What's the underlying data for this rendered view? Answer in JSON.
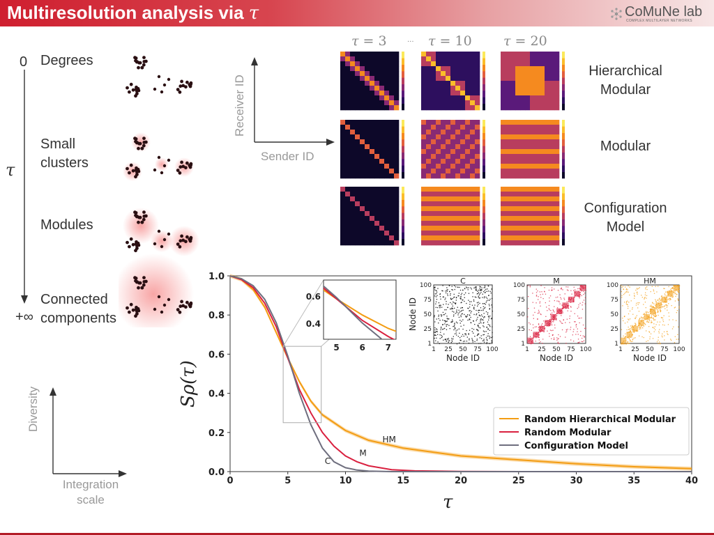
{
  "header": {
    "title": "Multiresolution analysis via",
    "tau": "τ"
  },
  "logo": {
    "name": "CoMuNe lab",
    "subtitle": "COMPLEX MULTILAYER NETWORKS"
  },
  "left_axis": {
    "zero": "0",
    "tau": "τ",
    "infinity": "+∞"
  },
  "stages": [
    {
      "lines": [
        "Degrees"
      ]
    },
    {
      "lines": [
        "Small",
        "clusters"
      ]
    },
    {
      "lines": [
        "Modules"
      ]
    },
    {
      "lines": [
        "Connected",
        "components"
      ]
    }
  ],
  "diversity_axes": {
    "y_label": "Diversity",
    "x_label_1": "Integration",
    "x_label_2": "scale"
  },
  "matrix_axes": {
    "y_label": "Receiver ID",
    "x_label": "Sender ID"
  },
  "tau_captions": [
    {
      "var": "τ",
      "rest": " = 3"
    },
    {
      "var": "τ",
      "rest": " = 10"
    },
    {
      "var": "τ",
      "rest": " = 20"
    }
  ],
  "dots_between": "...",
  "row_labels": [
    [
      "Hierarchical",
      "Modular"
    ],
    [
      "Modular"
    ],
    [
      "Configuration",
      "Model"
    ]
  ],
  "colors": {
    "hm": "#f39c12",
    "m": "#d9203f",
    "cm": "#6e6e7e"
  },
  "chart_data": {
    "type": "line",
    "ylabel": "Sρ(τ)",
    "xlabel": "τ",
    "xlim": [
      0,
      40
    ],
    "ylim": [
      0,
      1
    ],
    "xticks": [
      "0",
      "5",
      "10",
      "15",
      "20",
      "25",
      "30",
      "35",
      "40"
    ],
    "yticks": [
      "0.0",
      "0.2",
      "0.4",
      "0.6",
      "0.8",
      "1.0"
    ],
    "series": [
      {
        "name": "Random Hierarchical Modular",
        "short": "HM",
        "x": [
          0,
          1,
          2,
          3,
          4,
          5,
          6,
          7,
          8,
          10,
          12,
          15,
          20,
          25,
          30,
          35,
          40
        ],
        "y": [
          1.0,
          0.98,
          0.93,
          0.84,
          0.71,
          0.58,
          0.46,
          0.36,
          0.29,
          0.21,
          0.16,
          0.12,
          0.08,
          0.06,
          0.04,
          0.025,
          0.015
        ]
      },
      {
        "name": "Random Modular",
        "short": "M",
        "x": [
          0,
          1,
          2,
          3,
          4,
          5,
          6,
          7,
          8,
          9,
          10,
          11,
          12,
          14,
          16,
          20,
          25,
          30,
          40
        ],
        "y": [
          1.0,
          0.98,
          0.94,
          0.86,
          0.74,
          0.58,
          0.42,
          0.3,
          0.2,
          0.13,
          0.08,
          0.05,
          0.03,
          0.01,
          0.004,
          0.001,
          0,
          0,
          0
        ]
      },
      {
        "name": "Configuration Model",
        "short": "C",
        "x": [
          0,
          1,
          2,
          3,
          4,
          5,
          6,
          7,
          8,
          9,
          10,
          11,
          12,
          14,
          20,
          40
        ],
        "y": [
          1.0,
          0.985,
          0.95,
          0.88,
          0.76,
          0.59,
          0.4,
          0.24,
          0.12,
          0.05,
          0.02,
          0.008,
          0.003,
          0,
          0,
          0
        ]
      }
    ],
    "inset": {
      "xticks": [
        "5",
        "6",
        "7"
      ],
      "yticks": [
        "0.4",
        "0.6"
      ],
      "xlim": [
        4.5,
        7.3
      ],
      "ylim": [
        0.28,
        0.72
      ]
    },
    "adjacency_insets": [
      {
        "title": "C",
        "xlabel": "Node ID",
        "ylabel": "Node ID",
        "ticks": [
          "1",
          "25",
          "50",
          "75",
          "100"
        ]
      },
      {
        "title": "M",
        "xlabel": "Node ID",
        "ticks": [
          "1",
          "25",
          "50",
          "75",
          "100"
        ]
      },
      {
        "title": "HM",
        "xlabel": "Node ID",
        "ticks": [
          "1",
          "25",
          "50",
          "75",
          "100"
        ]
      }
    ]
  }
}
